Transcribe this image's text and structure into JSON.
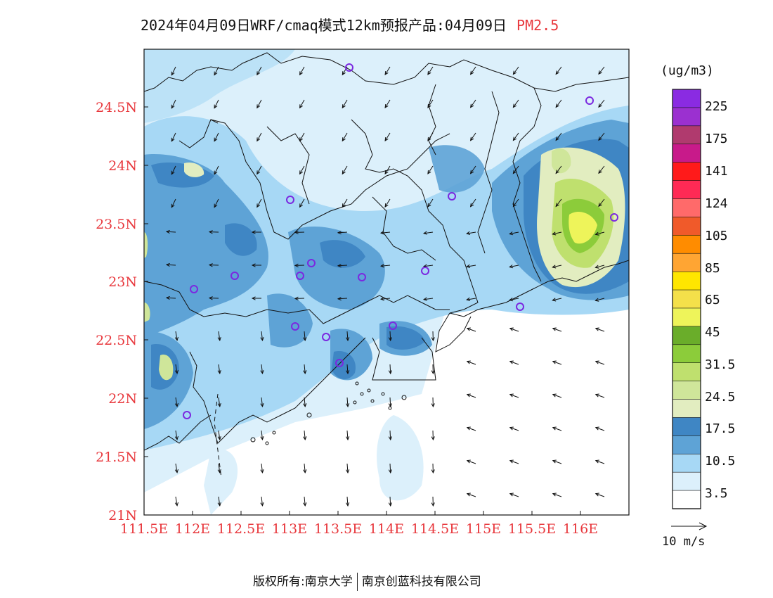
{
  "title": {
    "main": "2024年04月09日WRF/cmaq模式12km预报产品:04月09日",
    "species": "PM2.5"
  },
  "axes": {
    "x_ticks": [
      "111.5E",
      "112E",
      "112.5E",
      "113E",
      "113.5E",
      "114E",
      "114.5E",
      "115E",
      "115.5E",
      "116E"
    ],
    "y_ticks": [
      "24.5N",
      "24N",
      "23.5N",
      "23N",
      "22.5N",
      "22N",
      "21.5N",
      "21N"
    ]
  },
  "colorbar": {
    "unit": "(ug/m3)",
    "labels": [
      "225",
      "175",
      "141",
      "124",
      "105",
      "85",
      "65",
      "45",
      "31.5",
      "24.5",
      "17.5",
      "10.5",
      "3.5"
    ],
    "colors": [
      "#8a2be2",
      "#9b30d0",
      "#b03a6e",
      "#c81a8a",
      "#ff1a1a",
      "#ff2a55",
      "#ff6a6a",
      "#f05a2a",
      "#ff8c00",
      "#ffa533",
      "#ffe600",
      "#f4e04a",
      "#eef45a",
      "#6aad2a",
      "#8ccc3a",
      "#bfe06e",
      "#cfe69a",
      "#e2edc0",
      "#3f86c4",
      "#5ea3d6",
      "#a7d8f5",
      "#dcf0fb",
      "#ffffff"
    ]
  },
  "wind": {
    "scale_label": "10 m/s"
  },
  "footer": {
    "left": "版权所有:南京大学",
    "right": "南京创蓝科技有限公司"
  },
  "colors": {
    "axis_label": "#e8383d",
    "station_marker": "#7b28e0"
  }
}
